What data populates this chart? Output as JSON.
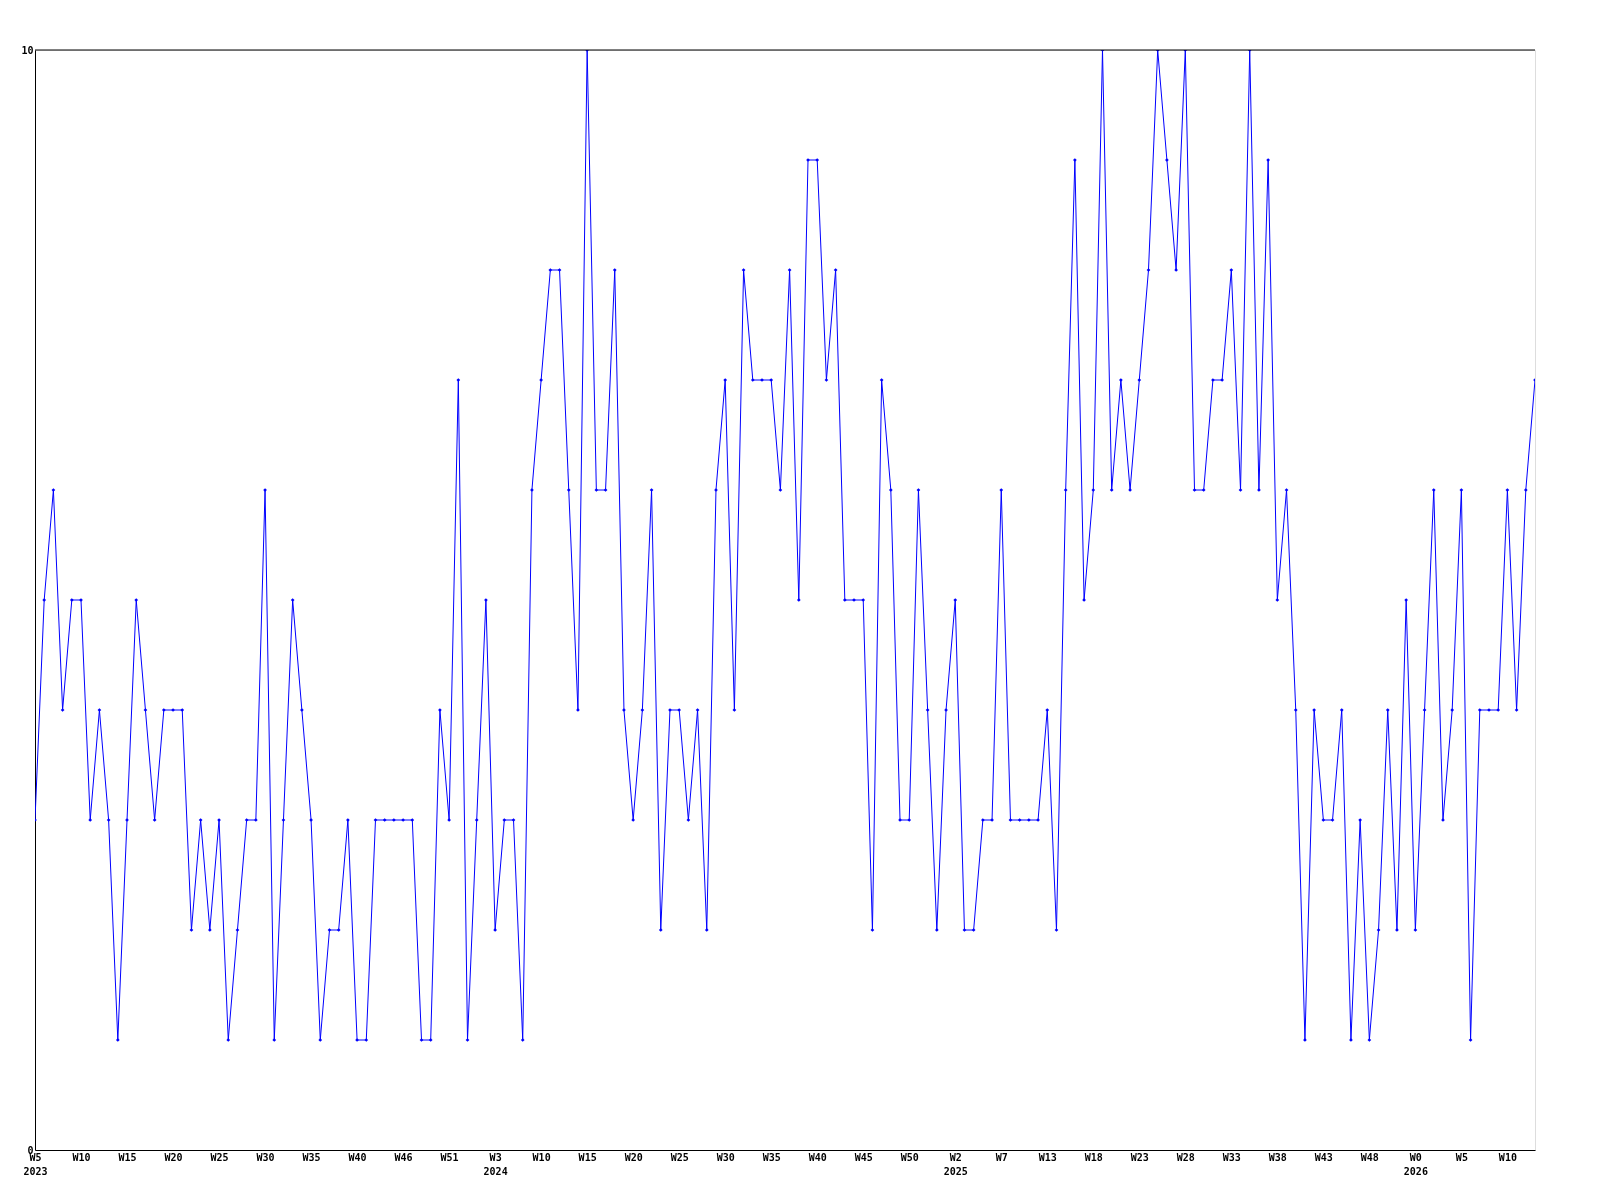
{
  "chart_data": {
    "type": "line",
    "marker": "diamond",
    "line_style": "solid",
    "grid": false,
    "ylim": [
      0,
      10
    ],
    "yticks": [
      0,
      10
    ],
    "categories": [
      "W5\n2023",
      null,
      null,
      null,
      null,
      "W10",
      null,
      null,
      null,
      null,
      "W15",
      null,
      null,
      null,
      null,
      "W20",
      null,
      null,
      null,
      null,
      "W25",
      null,
      null,
      null,
      null,
      "W30",
      null,
      null,
      null,
      null,
      "W35",
      null,
      null,
      null,
      null,
      "W40",
      null,
      null,
      null,
      null,
      "W46",
      null,
      null,
      null,
      null,
      "W51",
      null,
      null,
      null,
      null,
      "W3\n2024",
      null,
      null,
      null,
      null,
      "W10",
      null,
      null,
      null,
      null,
      "W15",
      null,
      null,
      null,
      null,
      "W20",
      null,
      null,
      null,
      null,
      "W25",
      null,
      null,
      null,
      null,
      "W30",
      null,
      null,
      null,
      null,
      "W35",
      null,
      null,
      null,
      null,
      "W40",
      null,
      null,
      null,
      null,
      "W45",
      null,
      null,
      null,
      null,
      "W50",
      null,
      null,
      null,
      null,
      "W2\n2025",
      null,
      null,
      null,
      null,
      "W7",
      null,
      null,
      null,
      null,
      "W13",
      null,
      null,
      null,
      null,
      "W18",
      null,
      null,
      null,
      null,
      "W23",
      null,
      null,
      null,
      null,
      "W28",
      null,
      null,
      null,
      null,
      "W33",
      null,
      null,
      null,
      null,
      "W38",
      null,
      null,
      null,
      null,
      "W43",
      null,
      null,
      null,
      null,
      "W48",
      null,
      null,
      null,
      null,
      "W0\n2026",
      null,
      null,
      null,
      null,
      "W5",
      null,
      null,
      null,
      null,
      "W10",
      null,
      null,
      null
    ],
    "series": [
      {
        "color": "#0000ff",
        "values": [
          3,
          5,
          6,
          4,
          5,
          5,
          3,
          4,
          3,
          1,
          3,
          5,
          4,
          3,
          4,
          4,
          4,
          2,
          3,
          2,
          3,
          1,
          2,
          3,
          3,
          6,
          1,
          3,
          5,
          4,
          3,
          1,
          2,
          2,
          3,
          1,
          1,
          3,
          3,
          3,
          3,
          3,
          1,
          1,
          4,
          3,
          7,
          1,
          3,
          5,
          2,
          3,
          3,
          1,
          6,
          7,
          8,
          8,
          6,
          4,
          10,
          6,
          6,
          8,
          4,
          3,
          4,
          6,
          2,
          4,
          4,
          3,
          4,
          2,
          6,
          7,
          4,
          8,
          7,
          7,
          7,
          6,
          8,
          5,
          9,
          9,
          7,
          8,
          5,
          5,
          5,
          2,
          7,
          6,
          3,
          3,
          6,
          4,
          2,
          4,
          5,
          2,
          2,
          3,
          3,
          6,
          3,
          3,
          3,
          3,
          4,
          2,
          6,
          9,
          5,
          6,
          10,
          6,
          7,
          6,
          7,
          8,
          10,
          9,
          8,
          10,
          6,
          6,
          7,
          7,
          8,
          6,
          10,
          6,
          9,
          5,
          6,
          4,
          1,
          4,
          3,
          3,
          4,
          1,
          3,
          1,
          2,
          4,
          2,
          5,
          2,
          4,
          6,
          3,
          4,
          6,
          1,
          4,
          4,
          4,
          6,
          4,
          6,
          7
        ]
      }
    ]
  }
}
